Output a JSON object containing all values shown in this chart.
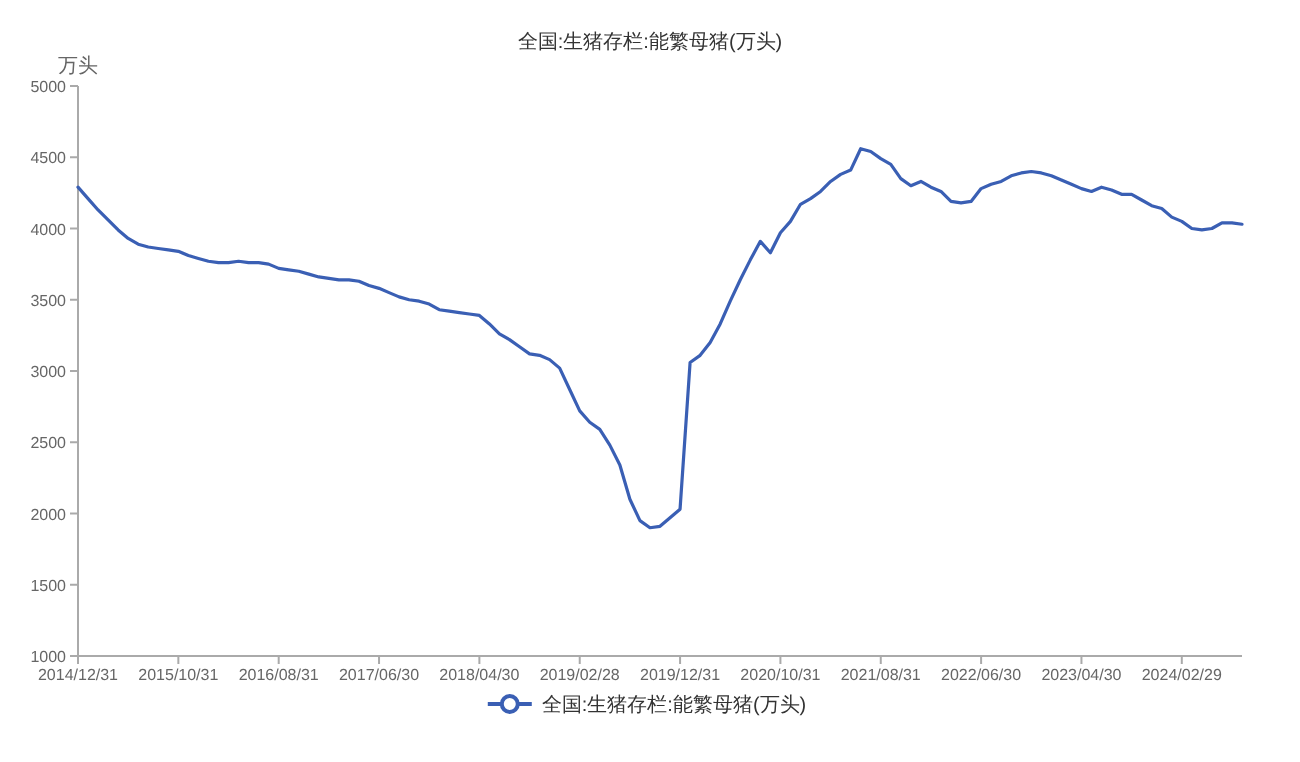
{
  "chart_data": {
    "type": "line",
    "title": "全国:生猪存栏:能繁母猪(万头)",
    "ylabel": "万头",
    "categories": [
      "2014/12/31",
      null,
      null,
      null,
      null,
      null,
      null,
      null,
      null,
      null,
      "2015/10/31",
      null,
      null,
      null,
      null,
      null,
      null,
      null,
      null,
      null,
      "2016/08/31",
      null,
      null,
      null,
      null,
      null,
      null,
      null,
      null,
      null,
      "2017/06/30",
      null,
      null,
      null,
      null,
      null,
      null,
      null,
      null,
      null,
      "2018/04/30",
      null,
      null,
      null,
      null,
      null,
      null,
      null,
      null,
      null,
      "2019/02/28",
      null,
      null,
      null,
      null,
      null,
      null,
      null,
      null,
      null,
      "2019/12/31",
      null,
      null,
      null,
      null,
      null,
      null,
      null,
      null,
      null,
      "2020/10/31",
      null,
      null,
      null,
      null,
      null,
      null,
      null,
      null,
      null,
      "2021/08/31",
      null,
      null,
      null,
      null,
      null,
      null,
      null,
      null,
      null,
      "2022/06/30",
      null,
      null,
      null,
      null,
      null,
      null,
      null,
      null,
      null,
      "2023/04/30",
      null,
      null,
      null,
      null,
      null,
      null,
      null,
      null,
      null,
      "2024/02/29",
      null,
      null,
      null,
      null,
      null,
      null
    ],
    "series": [
      {
        "name": "全国:生猪存栏:能繁母猪(万头)",
        "color": "#3a5fb4",
        "values": [
          4290,
          4210,
          4130,
          4060,
          3990,
          3930,
          3890,
          3870,
          3860,
          3850,
          3840,
          3810,
          3790,
          3770,
          3760,
          3760,
          3770,
          3760,
          3760,
          3750,
          3720,
          3710,
          3700,
          3680,
          3660,
          3650,
          3640,
          3640,
          3630,
          3600,
          3580,
          3550,
          3520,
          3500,
          3490,
          3470,
          3430,
          3420,
          3410,
          3400,
          3390,
          3330,
          3260,
          3220,
          3170,
          3120,
          3110,
          3080,
          3020,
          2870,
          2720,
          2640,
          2590,
          2480,
          2340,
          2100,
          1950,
          1900,
          1910,
          1970,
          2030,
          3060,
          3110,
          3200,
          3330,
          3490,
          3640,
          3780,
          3910,
          3830,
          3970,
          4050,
          4170,
          4210,
          4260,
          4330,
          4380,
          4410,
          4560,
          4540,
          4490,
          4450,
          4350,
          4300,
          4330,
          4290,
          4260,
          4190,
          4180,
          4190,
          4280,
          4310,
          4330,
          4370,
          4390,
          4400,
          4390,
          4370,
          4340,
          4310,
          4280,
          4260,
          4290,
          4270,
          4240,
          4240,
          4200,
          4160,
          4140,
          4080,
          4050,
          4000,
          3990,
          4000,
          4040,
          4040,
          4030
        ]
      }
    ],
    "ylim": [
      1000,
      5000
    ],
    "yticks": [
      1000,
      1500,
      2000,
      2500,
      3000,
      3500,
      4000,
      4500,
      5000
    ],
    "grid": false,
    "legend": "bottom",
    "line_style": "solid"
  }
}
